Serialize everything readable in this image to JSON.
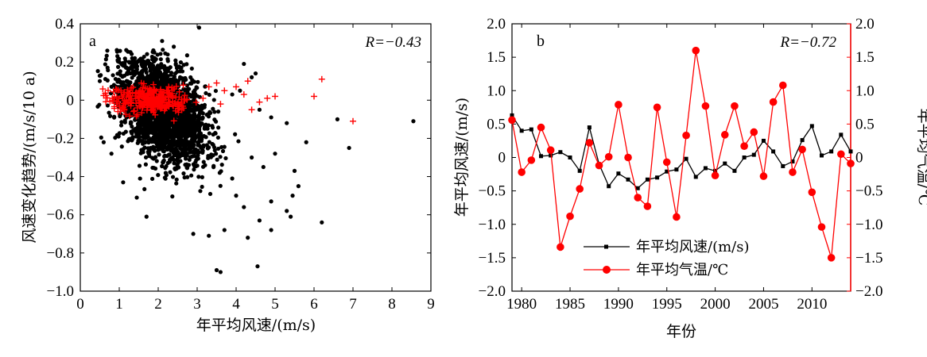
{
  "chart_data": [
    {
      "panel": "a",
      "type": "scatter",
      "xlabel": "年平均风速/(m/s)",
      "ylabel": "风速变化趋势/(m/s/10 a)",
      "xlim": [
        0,
        9
      ],
      "ylim": [
        -1.0,
        0.4
      ],
      "x_ticks": [
        "0",
        "1",
        "2",
        "3",
        "4",
        "5",
        "6",
        "7",
        "8",
        "9"
      ],
      "y_ticks": [
        "0.4",
        "0.2",
        "0",
        "−0.2",
        "−0.4",
        "−0.6",
        "−0.8",
        "−1.0"
      ],
      "annotation": "R=−0.43",
      "colors": {
        "black_series": "#000000",
        "red_series": "#ff0000"
      },
      "series": [
        {
          "marker": "dot",
          "color": "#000000",
          "points": [
            [
              3.05,
              0.38
            ],
            [
              2.1,
              0.31
            ],
            [
              2.4,
              0.28
            ],
            [
              1.9,
              0.25
            ],
            [
              1.4,
              0.22
            ],
            [
              1.0,
              0.2
            ],
            [
              0.7,
              0.17
            ],
            [
              0.5,
              0.1
            ],
            [
              4.2,
              0.19
            ],
            [
              4.1,
              0.05
            ],
            [
              4.4,
              0.12
            ],
            [
              4.5,
              0.14
            ],
            [
              3.9,
              0.03
            ],
            [
              4.6,
              -0.05
            ],
            [
              4.9,
              -0.09
            ],
            [
              5.3,
              -0.12
            ],
            [
              6.6,
              -0.1
            ],
            [
              8.55,
              -0.11
            ],
            [
              6.9,
              -0.25
            ],
            [
              5.8,
              -0.22
            ],
            [
              5.5,
              -0.37
            ],
            [
              5.6,
              -0.45
            ],
            [
              5.45,
              -0.5
            ],
            [
              5.3,
              -0.58
            ],
            [
              5.4,
              -0.61
            ],
            [
              6.2,
              -0.64
            ],
            [
              4.9,
              -0.53
            ],
            [
              4.9,
              -0.68
            ],
            [
              4.6,
              -0.63
            ],
            [
              4.55,
              -0.87
            ],
            [
              3.5,
              -0.89
            ],
            [
              3.6,
              -0.9
            ],
            [
              3.3,
              -0.71
            ],
            [
              3.7,
              -0.68
            ],
            [
              2.9,
              -0.7
            ],
            [
              1.7,
              -0.61
            ],
            [
              1.45,
              -0.51
            ],
            [
              1.1,
              -0.43
            ],
            [
              0.6,
              -0.22
            ],
            [
              0.8,
              -0.28
            ],
            [
              4.3,
              -0.72
            ],
            [
              4.2,
              -0.56
            ],
            [
              4.0,
              -0.5
            ],
            [
              3.9,
              -0.41
            ],
            [
              4.7,
              -0.35
            ],
            [
              5.0,
              -0.28
            ],
            [
              4.4,
              -0.3
            ]
          ]
        },
        {
          "marker": "plus",
          "color": "#ff0000",
          "points": [
            [
              6.2,
              0.11
            ],
            [
              6.0,
              0.02
            ],
            [
              7.0,
              -0.11
            ],
            [
              5.0,
              0.02
            ],
            [
              4.8,
              0.01
            ],
            [
              4.6,
              -0.01
            ],
            [
              4.4,
              -0.05
            ],
            [
              4.3,
              0.1
            ],
            [
              4.2,
              0.03
            ],
            [
              4.0,
              0.07
            ],
            [
              3.7,
              0.05
            ],
            [
              3.5,
              0.09
            ],
            [
              3.3,
              0.07
            ],
            [
              3.15,
              0.01
            ],
            [
              3.6,
              -0.02
            ]
          ]
        }
      ],
      "dense_clusters": [
        {
          "color": "#000000",
          "count": 2400,
          "center": [
            2.1,
            -0.16
          ],
          "spread": [
            0.55,
            0.12
          ]
        },
        {
          "color": "#ff0000",
          "count": 320,
          "center": [
            1.85,
            0.0
          ],
          "spread": [
            0.5,
            0.035
          ]
        }
      ]
    },
    {
      "panel": "b",
      "type": "line",
      "xlabel": "年份",
      "ylabel_left": "年平均风速/(m/s)",
      "ylabel_right": "年平均气温/℃",
      "xlim": [
        1979,
        2014
      ],
      "ylim_left": [
        -2.0,
        2.0
      ],
      "ylim_right": [
        -2.0,
        2.0
      ],
      "x_ticks": [
        "1980",
        "1985",
        "1990",
        "1995",
        "2000",
        "2005",
        "2010"
      ],
      "y_ticks_left": [
        "2.0",
        "1.5",
        "1.0",
        "0.5",
        "0",
        "−0.5",
        "−1.0",
        "−1.5",
        "−2.0"
      ],
      "y_ticks_right": [
        "2.0",
        "1.5",
        "1.0",
        "0.5",
        "0",
        "−0.5",
        "−1.0",
        "−1.5",
        "−2.0"
      ],
      "annotation": "R=−0.72",
      "years": [
        1979,
        1980,
        1981,
        1982,
        1983,
        1984,
        1985,
        1986,
        1987,
        1988,
        1989,
        1990,
        1991,
        1992,
        1993,
        1994,
        1995,
        1996,
        1997,
        1998,
        1999,
        2000,
        2001,
        2002,
        2003,
        2004,
        2005,
        2006,
        2007,
        2008,
        2009,
        2010,
        2011,
        2012,
        2013,
        2014
      ],
      "series": [
        {
          "name": "年平均风速/(m/s)",
          "color": "#000000",
          "marker": "small-square",
          "values": [
            0.63,
            0.4,
            0.42,
            0.02,
            0.03,
            0.08,
            0.0,
            -0.2,
            0.45,
            -0.1,
            -0.43,
            -0.24,
            -0.33,
            -0.46,
            -0.33,
            -0.3,
            -0.21,
            -0.18,
            -0.02,
            -0.29,
            -0.16,
            -0.2,
            -0.09,
            -0.2,
            0.0,
            0.04,
            0.25,
            0.09,
            -0.13,
            -0.06,
            0.26,
            0.47,
            0.03,
            0.09,
            0.34,
            0.09
          ]
        },
        {
          "name": "年平均气温/℃",
          "color": "#ff0000",
          "marker": "circle",
          "values": [
            0.56,
            -0.22,
            -0.04,
            0.45,
            0.11,
            -1.34,
            -0.88,
            -0.47,
            0.22,
            -0.12,
            0.01,
            0.79,
            0.0,
            -0.6,
            -0.73,
            0.75,
            -0.07,
            -0.89,
            0.33,
            1.6,
            0.77,
            -0.27,
            0.34,
            0.77,
            0.17,
            0.38,
            -0.28,
            0.83,
            1.08,
            -0.22,
            0.12,
            -0.52,
            -1.04,
            -1.5,
            0.05,
            -0.09
          ]
        }
      ]
    }
  ]
}
